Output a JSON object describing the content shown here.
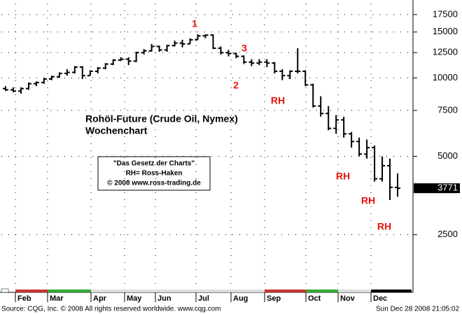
{
  "chart_data": {
    "type": "ohlc",
    "title": "Rohöl-Future (Crude Oil, Nymex)",
    "subtitle": "Wochenchart",
    "info_box": [
      "\"Das Gesetz der Charts\"",
      "RH= Ross-Haken",
      "© 2008 www.ross-trading.de"
    ],
    "annotations": [
      "1",
      "2",
      "3",
      "RH",
      "RH",
      "RH",
      "RH"
    ],
    "footer_left": "Source: CQG, Inc. © 2008 All rights reserved worldwide. www.cqg.com",
    "footer_right": "Sun Dec 28 2008 21:05:02",
    "month_labels": [
      "Feb",
      "Mar",
      "Apr",
      "May",
      "Jun",
      "Jul",
      "Aug",
      "Sep",
      "Oct",
      "Nov",
      "Dec"
    ],
    "color": "#000000",
    "open": [
      9100,
      9000,
      8900,
      9100,
      9500,
      9600,
      9900,
      10100,
      10400,
      10500,
      11000,
      10200,
      10600,
      10900,
      11300,
      11700,
      11800,
      11600,
      12500,
      12700,
      13200,
      12800,
      13300,
      13600,
      13500,
      14000,
      14500,
      14600,
      13000,
      12500,
      12400,
      12100,
      11500,
      11400,
      11500,
      11400,
      10600,
      10200,
      10600,
      10600,
      9400,
      7800,
      7300,
      6400,
      6900,
      6100,
      5700,
      5100,
      5400,
      4100,
      4600,
      3800
    ],
    "high": [
      9300,
      9200,
      9200,
      9600,
      9700,
      10000,
      10200,
      10500,
      10800,
      11100,
      11100,
      10700,
      11000,
      11400,
      11800,
      12000,
      12000,
      12600,
      12900,
      13500,
      13300,
      13400,
      13900,
      14000,
      14200,
      14700,
      14700,
      14700,
      13200,
      12800,
      12500,
      12200,
      11800,
      11800,
      11800,
      11500,
      10800,
      10700,
      13000,
      10700,
      9500,
      8500,
      7800,
      7200,
      7100,
      6200,
      5900,
      5800,
      5500,
      5000,
      4900,
      4300
    ],
    "low": [
      8900,
      8800,
      8700,
      9000,
      9300,
      9500,
      9800,
      10000,
      10200,
      10400,
      9900,
      10200,
      10400,
      10800,
      11200,
      11600,
      11200,
      11500,
      12300,
      12600,
      12600,
      12600,
      13200,
      13100,
      13500,
      14000,
      14200,
      12900,
      12300,
      12100,
      11900,
      11300,
      11100,
      11200,
      11000,
      10400,
      9800,
      9900,
      10400,
      9300,
      7700,
      7100,
      6300,
      6100,
      5900,
      5400,
      5000,
      4900,
      4000,
      4000,
      3400,
      3500
    ],
    "close": [
      9000,
      8900,
      9100,
      9500,
      9600,
      9900,
      10100,
      10400,
      10500,
      11000,
      10200,
      10600,
      10900,
      11300,
      11700,
      11800,
      11600,
      12500,
      12700,
      13200,
      12800,
      13300,
      13600,
      13500,
      14000,
      14500,
      14600,
      13000,
      12500,
      12400,
      12100,
      11500,
      11400,
      11500,
      11400,
      10600,
      10200,
      10600,
      10600,
      9400,
      7800,
      7300,
      6400,
      6900,
      6100,
      5700,
      5100,
      5400,
      4100,
      4600,
      3800,
      3771
    ],
    "last_price": 3771,
    "log_scale": true,
    "ylim": [
      1550,
      19300
    ],
    "yticks": [
      2500,
      5000,
      7500,
      10000,
      12500,
      15000,
      17500
    ],
    "grid": true
  }
}
